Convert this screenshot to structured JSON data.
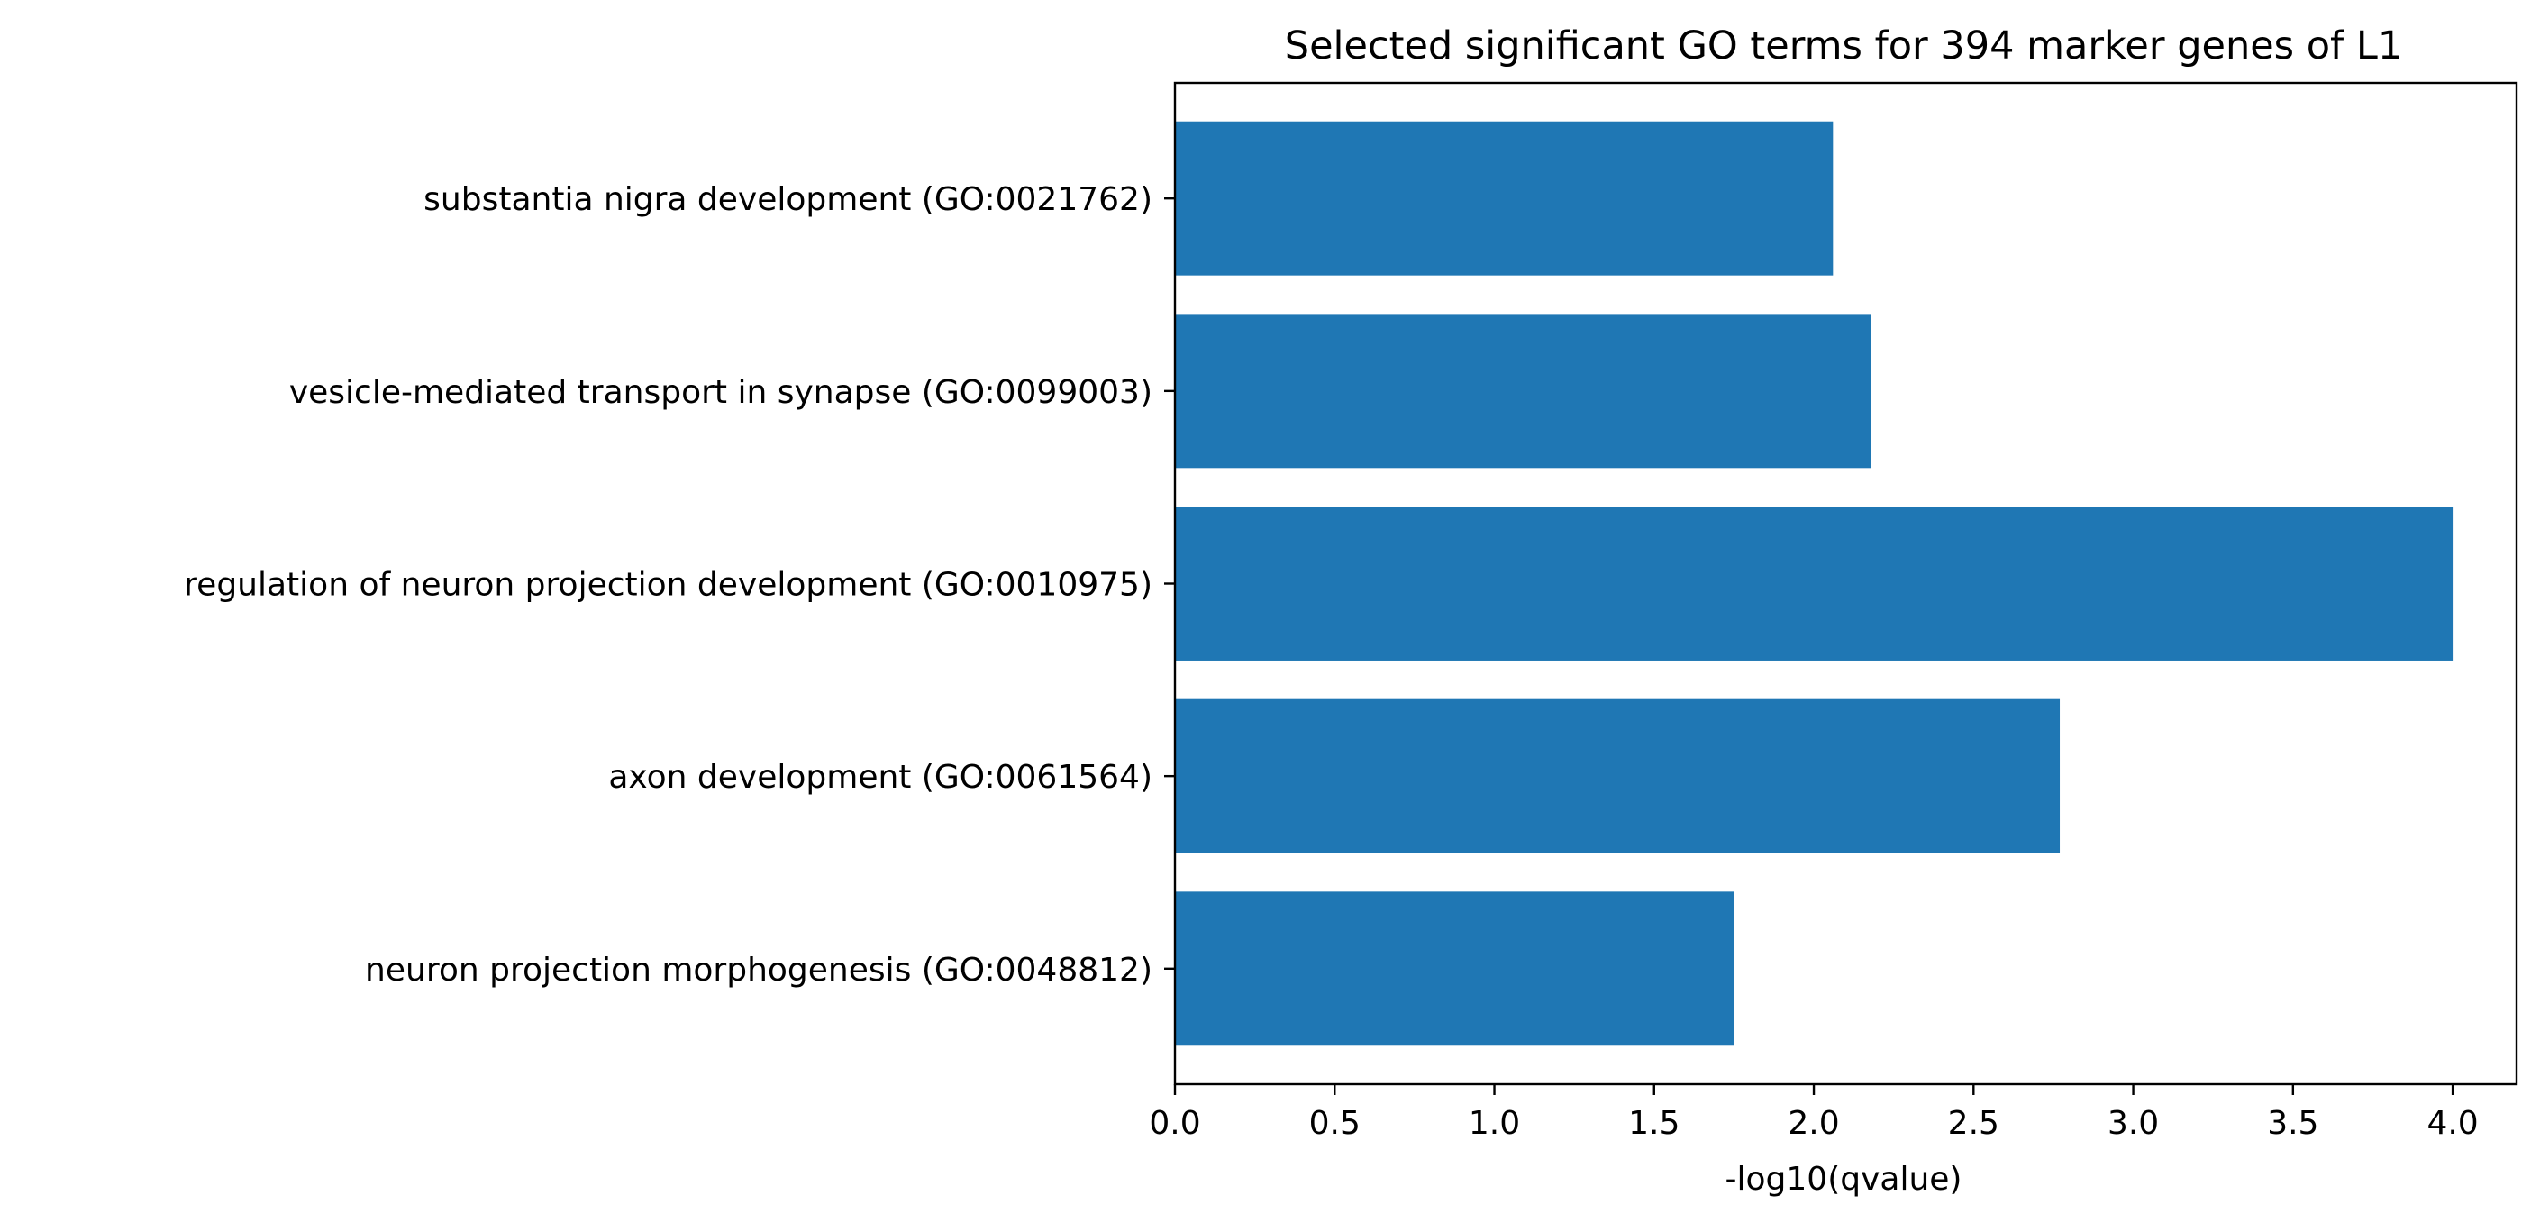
{
  "chart_data": {
    "type": "bar",
    "orientation": "horizontal",
    "title": "Selected significant GO terms for 394 marker genes of L1",
    "xlabel": "-log10(qvalue)",
    "ylabel": "",
    "categories": [
      "substantia nigra development (GO:0021762)",
      "vesicle-mediated transport in synapse (GO:0099003)",
      "regulation of neuron projection development (GO:0010975)",
      "axon development (GO:0061564)",
      "neuron projection morphogenesis (GO:0048812)"
    ],
    "values": [
      2.06,
      2.18,
      4.0,
      2.77,
      1.75
    ],
    "xlim": [
      0,
      4.2
    ],
    "xticks": [
      "0.0",
      "0.5",
      "1.0",
      "1.5",
      "2.0",
      "2.5",
      "3.0",
      "3.5",
      "4.0"
    ],
    "bar_color": "#1f77b4",
    "grid": false,
    "legend": false
  }
}
